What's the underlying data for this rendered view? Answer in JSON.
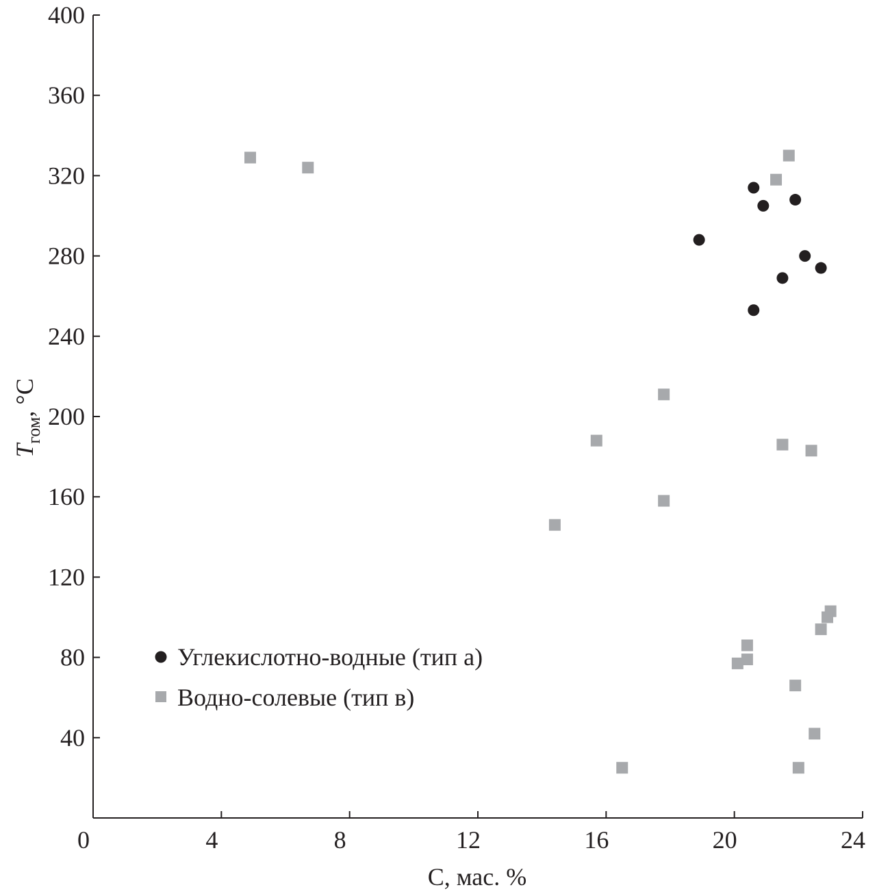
{
  "chart_data": {
    "type": "scatter",
    "xlabel": "C, мас. %",
    "ylabel": {
      "main": "T",
      "subscript": "гом",
      "unit": ", °C"
    },
    "xlim": [
      0,
      24
    ],
    "ylim": [
      0,
      400
    ],
    "xticks": [
      0,
      4,
      8,
      12,
      16,
      20,
      24
    ],
    "yticks": [
      40,
      80,
      120,
      160,
      200,
      240,
      280,
      320,
      360,
      400
    ],
    "x_tick_labels": [
      "0",
      "4",
      "8",
      "12",
      "16",
      "20",
      "24"
    ],
    "y_tick_labels": [
      "40",
      "80",
      "120",
      "160",
      "200",
      "240",
      "280",
      "320",
      "360",
      "400"
    ],
    "grid": false,
    "legend_position": "lower-left",
    "series": [
      {
        "name": "Углекислотно-водные (тип а)",
        "marker": "circle",
        "color": "#231f20",
        "points": [
          [
            18.9,
            288
          ],
          [
            20.6,
            314
          ],
          [
            20.9,
            305
          ],
          [
            21.9,
            308
          ],
          [
            22.2,
            280
          ],
          [
            21.5,
            269
          ],
          [
            22.7,
            274
          ],
          [
            20.6,
            253
          ]
        ]
      },
      {
        "name": "Водно-солевые (тип в)",
        "marker": "square",
        "color": "#a7a9ac",
        "points": [
          [
            4.9,
            329
          ],
          [
            6.7,
            324
          ],
          [
            21.3,
            318
          ],
          [
            21.7,
            330
          ],
          [
            17.8,
            211
          ],
          [
            15.7,
            188
          ],
          [
            21.5,
            186
          ],
          [
            22.4,
            183
          ],
          [
            17.8,
            158
          ],
          [
            14.4,
            146
          ],
          [
            23.0,
            103
          ],
          [
            22.9,
            100
          ],
          [
            22.7,
            94
          ],
          [
            20.4,
            86
          ],
          [
            20.4,
            79
          ],
          [
            20.1,
            77
          ],
          [
            21.9,
            66
          ],
          [
            22.5,
            42
          ],
          [
            16.5,
            25
          ],
          [
            22.0,
            25
          ]
        ]
      }
    ]
  }
}
